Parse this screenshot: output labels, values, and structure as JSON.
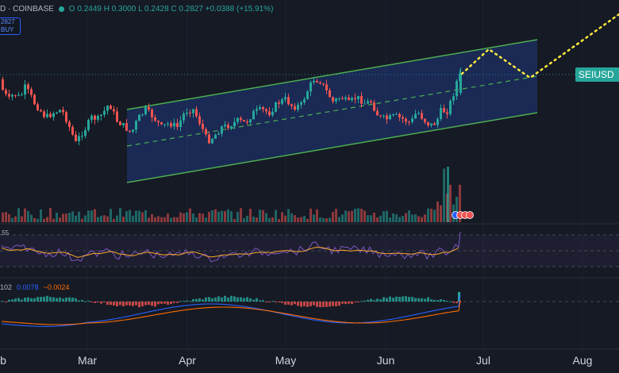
{
  "header": {
    "symbol": "D · COINBASE",
    "ohlc": "O 0.2449  H 0.3000  L 0.2428  C 0.2827  +0.0388 (+15.91%)"
  },
  "price_box": {
    "price": "2827",
    "action": "BUY"
  },
  "rsi": {
    "value_label": ".55"
  },
  "macd": {
    "hist_label": "102",
    "macd_label": "0.0078",
    "signal_label": "−0.0024"
  },
  "price_tag": "SEIUSD",
  "time_axis": [
    "b",
    "Mar",
    "Apr",
    "May",
    "Jun",
    "Jul",
    "Aug"
  ],
  "colors": {
    "up": "#26a69a",
    "down": "#ef5350",
    "channel": "#4caf50",
    "projection": "#ffeb3b",
    "rsi": "#7e57c2",
    "rsi_ma": "#f9a825",
    "macd": "#2962ff",
    "signal": "#ff6d00"
  },
  "chart_data": {
    "type": "candlestick",
    "symbol": "SEIUSD",
    "exchange": "COINBASE",
    "last": {
      "open": 0.2449,
      "high": 0.3,
      "low": 0.2428,
      "close": 0.2827,
      "change": 0.0388,
      "change_pct": 15.91
    },
    "x_ticks": [
      "Mar",
      "Apr",
      "May",
      "Jun",
      "Jul",
      "Aug"
    ],
    "panes": [
      "price",
      "volume",
      "rsi",
      "macd"
    ]
  }
}
